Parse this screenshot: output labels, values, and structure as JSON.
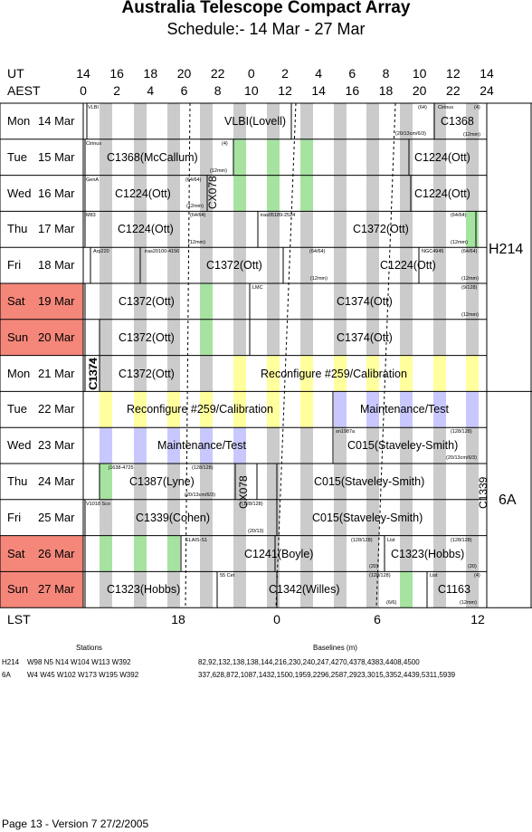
{
  "title": "Australia Telescope Compact Array",
  "subtitle": "Schedule:- 14 Mar - 27 Mar",
  "axis": {
    "ut_label": "UT",
    "aest_label": "AEST",
    "lst_label": "LST",
    "ut_ticks": [
      "14",
      "16",
      "18",
      "20",
      "22",
      "0",
      "2",
      "4",
      "6",
      "8",
      "10",
      "12",
      "14"
    ],
    "aest_ticks": [
      "0",
      "2",
      "4",
      "6",
      "8",
      "10",
      "12",
      "14",
      "16",
      "18",
      "20",
      "22",
      "24"
    ],
    "lst_ticks": [
      "18",
      "0",
      "6",
      "12"
    ]
  },
  "days": [
    {
      "day": "Mon",
      "date": "14 Mar",
      "weekend": false
    },
    {
      "day": "Tue",
      "date": "15 Mar",
      "weekend": false
    },
    {
      "day": "Wed",
      "date": "16 Mar",
      "weekend": false
    },
    {
      "day": "Thu",
      "date": "17 Mar",
      "weekend": false
    },
    {
      "day": "Fri",
      "date": "18 Mar",
      "weekend": false
    },
    {
      "day": "Sat",
      "date": "19 Mar",
      "weekend": true
    },
    {
      "day": "Sun",
      "date": "20 Mar",
      "weekend": true
    },
    {
      "day": "Mon",
      "date": "21 Mar",
      "weekend": false
    },
    {
      "day": "Tue",
      "date": "22 Mar",
      "weekend": false
    },
    {
      "day": "Wed",
      "date": "23 Mar",
      "weekend": false
    },
    {
      "day": "Thu",
      "date": "24 Mar",
      "weekend": false
    },
    {
      "day": "Fri",
      "date": "25 Mar",
      "weekend": false
    },
    {
      "day": "Sat",
      "date": "26 Mar",
      "weekend": true
    },
    {
      "day": "Sun",
      "date": "27 Mar",
      "weekend": true
    }
  ],
  "configs": [
    "H214",
    "6A"
  ],
  "blocks": [
    {
      "label": "VLBI(Lovell)",
      "small": [
        "VLBI"
      ]
    },
    {
      "label": "C1368",
      "small": [
        "Cirinus",
        "(4)",
        "(64)",
        "(20/13cm/6/3)",
        "(12mm)"
      ]
    },
    {
      "label": "C1368(McCallum)",
      "small": [
        "Cirinus",
        "(4)",
        "(12mm)"
      ]
    },
    {
      "label": "C1224(Ott)",
      "small": [
        "GenA",
        "(64/64)",
        "(12mm)"
      ]
    },
    {
      "label": "CX078"
    },
    {
      "label": "C1224(Ott)",
      "small": [
        "M83",
        "(64/64)",
        "(12mm)"
      ]
    },
    {
      "label": "C1372(Ott)",
      "small": [
        "iras05189-2524",
        "(64/64)",
        "(12mm)"
      ]
    },
    {
      "label": "C1372(Ott)",
      "small": [
        "Arp220",
        "iras20100-4156",
        "(64/64)",
        "(12mm)"
      ]
    },
    {
      "label": "C1224(Ott)",
      "small": [
        "NGC4945",
        "(64/64)",
        "(12mm)"
      ]
    },
    {
      "label": "C1374(Ott)",
      "small": [
        "LMC",
        "(9/128)",
        "(12mm)"
      ]
    },
    {
      "label": "C1374"
    },
    {
      "label": "Reconfigure #259/Calibration"
    },
    {
      "label": "Maintenance/Test"
    },
    {
      "label": "C015(Staveley-Smith)",
      "small": [
        "sn1987a",
        "(128/128)",
        "(20/13cm/6/3)"
      ]
    },
    {
      "label": "C1387(Lyne)",
      "small": [
        "j1638-4725",
        "(128/128)",
        "(20/13cm/6/3)"
      ]
    },
    {
      "label": "C1339(Cohen)",
      "small": [
        "V1018 Sco",
        "(128/128)",
        "(20/13)"
      ]
    },
    {
      "label": "C1339"
    },
    {
      "label": "C1241(Boyle)",
      "small": [
        "ELAIS-S1",
        "(128/128)",
        "(20)"
      ]
    },
    {
      "label": "C1323(Hobbs)",
      "small": [
        "List",
        "(128/128)",
        "(20)"
      ]
    },
    {
      "label": "C1342(Willes)",
      "small": [
        "55 Cet",
        "(128/128)",
        "(6/6)"
      ]
    },
    {
      "label": "C1163",
      "small": [
        "List",
        "(4)",
        "(12mm)"
      ]
    }
  ],
  "footer": {
    "stations_label": "Stations",
    "baselines_label": "Baselines (m)",
    "rows": [
      {
        "config": "H214",
        "stations": "W98 N5 N14 W104 W113 W392",
        "baselines": "82,92,132,138,138,144,216,230,240,247,4270,4378,4383,4408,4500"
      },
      {
        "config": "6A",
        "stations": "W4 W45 W102 W173 W195 W392",
        "baselines": "337,628,872,1087,1432,1500,1959,2296,2587,2923,3015,3352,4439,5311,5939"
      }
    ]
  },
  "page": "Page 13 - Version 7  27/2/2005"
}
